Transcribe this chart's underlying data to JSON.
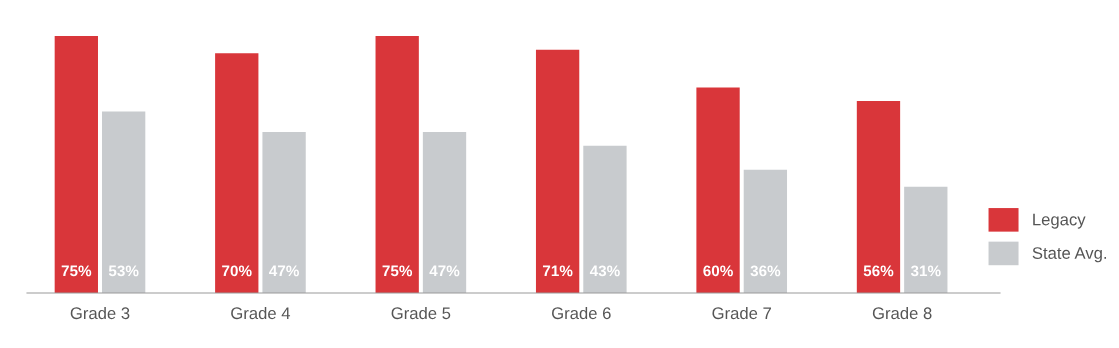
{
  "chart_data": {
    "type": "bar",
    "categories": [
      "Grade 3",
      "Grade 4",
      "Grade 5",
      "Grade 6",
      "Grade 7",
      "Grade 8"
    ],
    "series": [
      {
        "name": "Legacy",
        "color": "#d9363a",
        "values": [
          75,
          70,
          75,
          71,
          60,
          56
        ],
        "value_labels": [
          "75%",
          "70%",
          "75%",
          "71%",
          "60%",
          "56%"
        ]
      },
      {
        "name": "State Avg.",
        "color": "#c8cbce",
        "values": [
          53,
          47,
          47,
          43,
          36,
          31
        ],
        "value_labels": [
          "53%",
          "47%",
          "47%",
          "43%",
          "36%",
          "31%"
        ]
      }
    ],
    "grid": false,
    "legend": "right"
  }
}
